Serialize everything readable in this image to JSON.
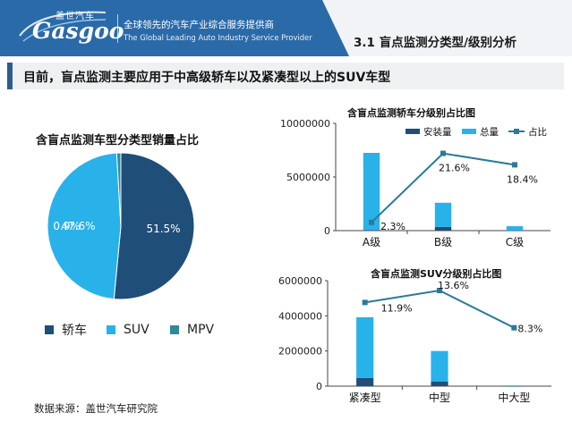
{
  "header": {
    "brand_cn": "盖世汽车",
    "brand_en": "Gasgoo",
    "tagline_cn": "全球领先的汽车产业综合服务提供商",
    "tagline_en": "The Global Leading Auto Industry Service Provider",
    "section_title": "3.1 盲点监测分类型/级别分析",
    "band_color": "#2a6aa8"
  },
  "subtitle": "目前，盲点监测主要应用于中高级轿车以及紧凑型以上的SUV车型",
  "source": "数据来源：盖世汽车研究院",
  "colors": {
    "dark": "#1f4e79",
    "light": "#29b2ea",
    "teal": "#2e8a9c",
    "line": "#2b7a9a"
  },
  "chart_data": [
    {
      "type": "pie",
      "title": "含盲点监测车型分类型销量占比",
      "labels": [
        "轿车",
        "SUV",
        "MPV"
      ],
      "values": [
        51.5,
        47.6,
        0.9
      ],
      "value_labels": [
        "51.5%",
        "47.6%",
        "0.9%"
      ],
      "colors": [
        "#1f4e79",
        "#29b2ea",
        "#2e8a9c"
      ],
      "legend_position": "bottom"
    },
    {
      "type": "bar",
      "title": "含盲点监测轿车分级别占比图",
      "categories": [
        "A级",
        "B级",
        "C级"
      ],
      "series": [
        {
          "name": "安装量",
          "kind": "stacked-bar",
          "values": [
            50000,
            350000,
            10000
          ],
          "color": "#1f4e79"
        },
        {
          "name": "总量",
          "kind": "stacked-bar",
          "values": [
            7200000,
            2250000,
            400000
          ],
          "color": "#29b2ea"
        },
        {
          "name": "占比",
          "kind": "line",
          "axis": "secondary",
          "values": [
            2.3,
            21.6,
            18.4
          ],
          "color": "#2b7a9a"
        }
      ],
      "line_labels": [
        "2.3%",
        "21.6%",
        "18.4%"
      ],
      "yticks": [
        "0",
        "5000000",
        "10000000"
      ],
      "ylim": [
        0,
        10000000
      ],
      "y2lim": [
        0,
        30
      ],
      "legend_position": "top"
    },
    {
      "type": "bar",
      "title": "含盲点监测SUV分级别占比图",
      "categories": [
        "紧凑型",
        "中型",
        "中大型"
      ],
      "series": [
        {
          "name": "安装量",
          "kind": "stacked-bar",
          "values": [
            470000,
            270000,
            3000
          ],
          "color": "#1f4e79"
        },
        {
          "name": "总量",
          "kind": "stacked-bar",
          "values": [
            3450000,
            1730000,
            37000
          ],
          "color": "#29b2ea"
        },
        {
          "name": "占比",
          "kind": "line",
          "axis": "secondary",
          "values": [
            11.9,
            13.6,
            8.3
          ],
          "color": "#2b7a9a"
        }
      ],
      "line_labels": [
        "11.9%",
        "13.6%",
        "8.3%"
      ],
      "yticks": [
        "0",
        "2000000",
        "4000000",
        "6000000"
      ],
      "ylim": [
        0,
        6000000
      ],
      "y2lim": [
        0,
        15
      ]
    }
  ]
}
